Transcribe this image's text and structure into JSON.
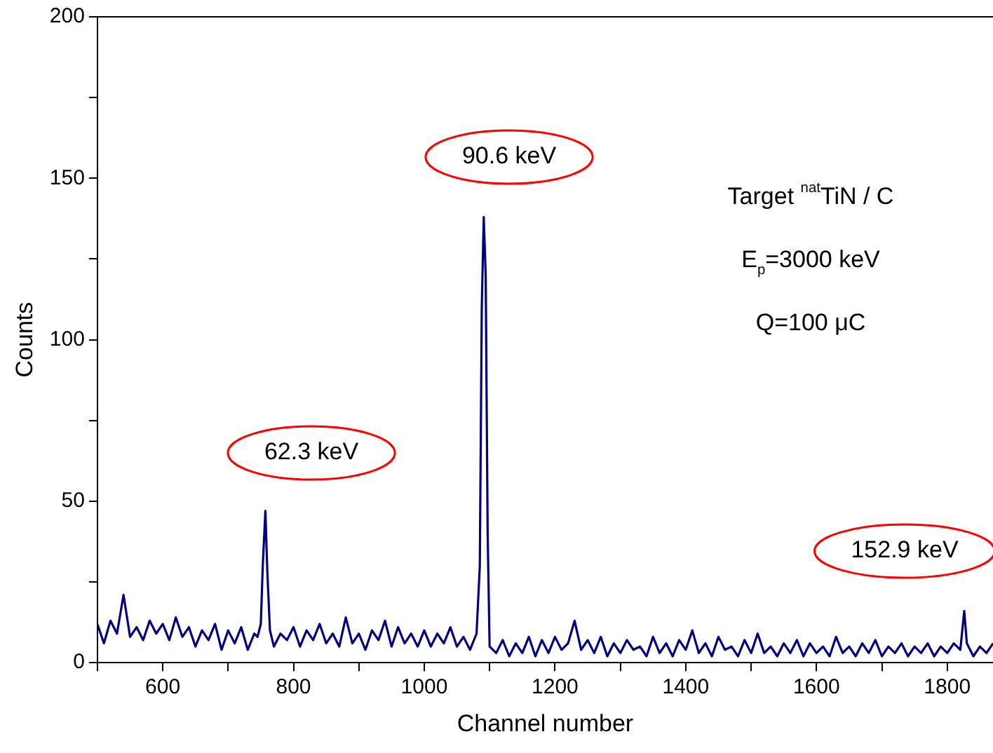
{
  "chart_data": {
    "type": "line",
    "xlabel": "Channel number",
    "ylabel": "Counts",
    "x": [
      500,
      510,
      520,
      530,
      540,
      550,
      560,
      570,
      580,
      590,
      600,
      610,
      620,
      630,
      640,
      650,
      660,
      670,
      680,
      690,
      700,
      710,
      720,
      730,
      740,
      745,
      750,
      753,
      757,
      760,
      764,
      770,
      780,
      790,
      800,
      810,
      820,
      830,
      840,
      850,
      860,
      870,
      880,
      890,
      900,
      910,
      920,
      930,
      940,
      950,
      960,
      970,
      980,
      990,
      1000,
      1010,
      1020,
      1030,
      1040,
      1050,
      1060,
      1070,
      1080,
      1085,
      1088,
      1091,
      1094,
      1097,
      1100,
      1110,
      1120,
      1130,
      1140,
      1150,
      1160,
      1170,
      1180,
      1190,
      1200,
      1210,
      1220,
      1230,
      1240,
      1250,
      1260,
      1270,
      1280,
      1290,
      1300,
      1310,
      1320,
      1330,
      1340,
      1350,
      1360,
      1370,
      1380,
      1390,
      1400,
      1410,
      1420,
      1430,
      1440,
      1450,
      1460,
      1470,
      1480,
      1490,
      1500,
      1510,
      1520,
      1530,
      1540,
      1550,
      1560,
      1570,
      1580,
      1590,
      1600,
      1610,
      1620,
      1630,
      1640,
      1650,
      1660,
      1670,
      1680,
      1690,
      1700,
      1710,
      1720,
      1730,
      1740,
      1750,
      1760,
      1770,
      1780,
      1790,
      1800,
      1810,
      1820,
      1826,
      1830,
      1840,
      1850,
      1860,
      1870
    ],
    "series": [
      {
        "color": "#000080",
        "values": [
          12,
          6,
          13,
          9,
          21,
          8,
          11,
          7,
          13,
          9,
          12,
          7,
          14,
          8,
          11,
          5,
          10,
          7,
          12,
          4,
          10,
          6,
          11,
          4,
          9,
          8,
          12,
          30,
          47,
          28,
          10,
          5,
          9,
          7,
          11,
          5,
          10,
          7,
          12,
          6,
          9,
          5,
          14,
          6,
          9,
          4,
          10,
          7,
          13,
          5,
          11,
          6,
          9,
          5,
          10,
          5,
          9,
          6,
          11,
          5,
          8,
          4,
          9,
          30,
          110,
          138,
          120,
          40,
          5,
          3,
          7,
          2,
          6,
          3,
          8,
          2,
          7,
          3,
          8,
          4,
          6,
          13,
          4,
          7,
          3,
          8,
          2,
          6,
          3,
          7,
          4,
          5,
          2,
          8,
          3,
          6,
          2,
          7,
          4,
          10,
          3,
          6,
          2,
          8,
          4,
          5,
          2,
          7,
          3,
          9,
          3,
          5,
          2,
          6,
          3,
          7,
          2,
          6,
          3,
          5,
          2,
          8,
          3,
          5,
          2,
          6,
          3,
          7,
          2,
          5,
          3,
          6,
          2,
          5,
          3,
          6,
          2,
          5,
          3,
          6,
          4,
          16,
          6,
          2,
          5,
          3,
          6
        ]
      }
    ],
    "xlim": [
      500,
      1870
    ],
    "xticks": [
      {
        "value": 500,
        "label": null
      },
      600,
      {
        "value": 700,
        "label": null
      },
      800,
      {
        "value": 900,
        "label": null
      },
      1000,
      {
        "value": 1100,
        "label": null
      },
      1200,
      {
        "value": 1300,
        "label": null
      },
      1400,
      {
        "value": 1500,
        "label": null
      },
      1600,
      {
        "value": 1700,
        "label": null
      },
      1800
    ],
    "ylim": [
      0,
      200
    ],
    "yticks": [
      0,
      {
        "value": 25,
        "label": null
      },
      50,
      {
        "value": 75,
        "label": null
      },
      100,
      {
        "value": 125,
        "label": null
      },
      150,
      {
        "value": 175,
        "label": null
      },
      200
    ],
    "grid": false,
    "legend": false,
    "marker": "none",
    "line_style": "solid",
    "annotations": [
      "62.3 keV",
      "90.6 keV",
      "152.9 keV",
      "Target $^{nat}$TiN / C",
      "E$_{p}$=3000 keV",
      "Q=100 μC"
    ]
  }
}
